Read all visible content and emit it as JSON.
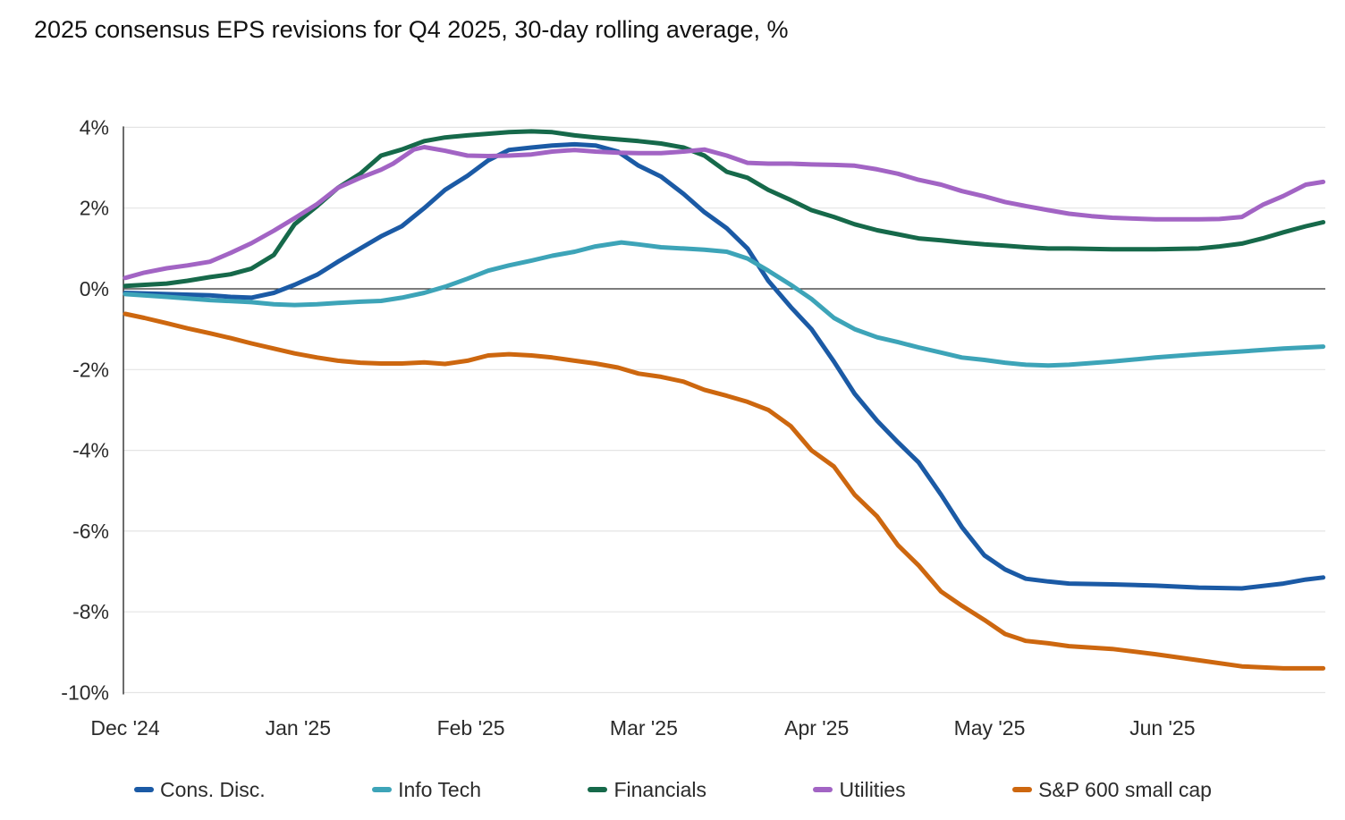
{
  "chart_data": {
    "type": "line",
    "title": "2025 consensus EPS revisions for Q4 2025, 30-day rolling average, %",
    "x_axis": {
      "unit": "months_since_dec_2024",
      "tick_values": [
        0,
        1,
        2,
        3,
        4,
        5,
        6
      ],
      "tick_labels": [
        "Dec '24",
        "Jan '25",
        "Feb '25",
        "Mar '25",
        "Apr '25",
        "May '25",
        "Jun '25"
      ],
      "range": [
        -0.01,
        6.95
      ]
    },
    "y_axis": {
      "tick_values": [
        4,
        2,
        0,
        -2,
        -4,
        -6,
        -8,
        -10
      ],
      "tick_labels": [
        "4%",
        "2%",
        "0%",
        "-2%",
        "-4%",
        "-6%",
        "-8%",
        "-10%"
      ],
      "range": [
        -10,
        4
      ],
      "grid": true
    },
    "style": {
      "grid_color": "#e4e4e4",
      "zero_line_color": "#2e2e2e",
      "axis_line_color": "#3c3c3c",
      "text_color": "#2b2b2b",
      "line_width": 5
    },
    "legend_position": "bottom",
    "series": [
      {
        "name": "Cons. Disc.",
        "color": "#1b5aa5",
        "x": [
          0,
          0.24,
          0.49,
          0.61,
          0.73,
          0.86,
          0.92,
          0.98,
          1.11,
          1.23,
          1.36,
          1.48,
          1.6,
          1.73,
          1.85,
          1.98,
          2.1,
          2.22,
          2.35,
          2.47,
          2.6,
          2.72,
          2.85,
          2.97,
          3.1,
          3.23,
          3.35,
          3.48,
          3.6,
          3.72,
          3.85,
          3.97,
          4.1,
          4.22,
          4.35,
          4.47,
          4.59,
          4.72,
          4.84,
          4.97,
          5.09,
          5.21,
          5.34,
          5.46,
          5.71,
          5.96,
          6.21,
          6.46,
          6.7,
          6.83,
          6.93
        ],
        "v": [
          -0.1,
          -0.13,
          -0.16,
          -0.2,
          -0.22,
          -0.1,
          0.0,
          0.1,
          0.35,
          0.67,
          1.0,
          1.3,
          1.55,
          2.0,
          2.45,
          2.8,
          3.18,
          3.44,
          3.5,
          3.55,
          3.58,
          3.55,
          3.4,
          3.05,
          2.78,
          2.35,
          1.9,
          1.5,
          1.0,
          0.2,
          -0.45,
          -1.0,
          -1.8,
          -2.6,
          -3.27,
          -3.8,
          -4.3,
          -5.1,
          -5.9,
          -6.6,
          -6.95,
          -7.18,
          -7.25,
          -7.3,
          -7.32,
          -7.35,
          -7.4,
          -7.42,
          -7.3,
          -7.2,
          -7.15
        ]
      },
      {
        "name": "Info Tech",
        "color": "#3da4b8",
        "x": [
          0,
          0.24,
          0.49,
          0.73,
          0.86,
          0.98,
          1.11,
          1.23,
          1.36,
          1.48,
          1.6,
          1.73,
          1.85,
          1.98,
          2.1,
          2.22,
          2.35,
          2.47,
          2.6,
          2.72,
          2.87,
          2.97,
          3.1,
          3.23,
          3.35,
          3.48,
          3.6,
          3.72,
          3.85,
          3.97,
          4.1,
          4.22,
          4.35,
          4.47,
          4.59,
          4.72,
          4.84,
          4.97,
          5.09,
          5.21,
          5.34,
          5.46,
          5.71,
          5.96,
          6.21,
          6.46,
          6.7,
          6.93
        ],
        "v": [
          -0.13,
          -0.2,
          -0.28,
          -0.33,
          -0.38,
          -0.4,
          -0.38,
          -0.35,
          -0.32,
          -0.3,
          -0.22,
          -0.1,
          0.05,
          0.25,
          0.45,
          0.58,
          0.7,
          0.82,
          0.92,
          1.05,
          1.15,
          1.1,
          1.03,
          1.0,
          0.97,
          0.92,
          0.75,
          0.45,
          0.1,
          -0.25,
          -0.72,
          -1.0,
          -1.2,
          -1.32,
          -1.45,
          -1.58,
          -1.7,
          -1.76,
          -1.83,
          -1.88,
          -1.9,
          -1.88,
          -1.8,
          -1.7,
          -1.62,
          -1.55,
          -1.48,
          -1.43
        ]
      },
      {
        "name": "Financials",
        "color": "#16694a",
        "x": [
          0,
          0.24,
          0.36,
          0.49,
          0.61,
          0.73,
          0.86,
          0.98,
          1.11,
          1.23,
          1.36,
          1.48,
          1.6,
          1.73,
          1.85,
          1.98,
          2.22,
          2.35,
          2.47,
          2.6,
          2.72,
          2.85,
          2.97,
          3.1,
          3.23,
          3.35,
          3.48,
          3.6,
          3.72,
          3.85,
          3.97,
          4.1,
          4.22,
          4.35,
          4.47,
          4.59,
          4.72,
          4.84,
          4.97,
          5.09,
          5.21,
          5.34,
          5.46,
          5.71,
          5.96,
          6.21,
          6.33,
          6.46,
          6.58,
          6.7,
          6.83,
          6.93
        ],
        "v": [
          0.07,
          0.13,
          0.2,
          0.29,
          0.36,
          0.5,
          0.84,
          1.6,
          2.05,
          2.5,
          2.85,
          3.3,
          3.45,
          3.66,
          3.75,
          3.8,
          3.88,
          3.9,
          3.88,
          3.8,
          3.75,
          3.7,
          3.66,
          3.6,
          3.5,
          3.3,
          2.9,
          2.75,
          2.45,
          2.2,
          1.95,
          1.78,
          1.6,
          1.45,
          1.35,
          1.25,
          1.2,
          1.15,
          1.1,
          1.07,
          1.03,
          1.0,
          1.0,
          0.98,
          0.98,
          1.0,
          1.05,
          1.12,
          1.25,
          1.4,
          1.55,
          1.65
        ]
      },
      {
        "name": "Utilities",
        "color": "#a264c4",
        "x": [
          0,
          0.11,
          0.24,
          0.36,
          0.49,
          0.61,
          0.73,
          0.86,
          0.98,
          1.11,
          1.23,
          1.36,
          1.48,
          1.55,
          1.67,
          1.73,
          1.85,
          1.98,
          2.1,
          2.22,
          2.35,
          2.47,
          2.6,
          2.72,
          2.85,
          2.97,
          3.1,
          3.23,
          3.35,
          3.48,
          3.6,
          3.72,
          3.85,
          3.97,
          4.1,
          4.22,
          4.35,
          4.47,
          4.59,
          4.72,
          4.84,
          4.97,
          5.09,
          5.21,
          5.34,
          5.46,
          5.59,
          5.71,
          5.83,
          5.96,
          6.08,
          6.21,
          6.33,
          6.46,
          6.58,
          6.7,
          6.83,
          6.93
        ],
        "v": [
          0.27,
          0.4,
          0.51,
          0.58,
          0.67,
          0.89,
          1.13,
          1.44,
          1.75,
          2.1,
          2.5,
          2.75,
          2.95,
          3.1,
          3.45,
          3.51,
          3.42,
          3.3,
          3.29,
          3.3,
          3.33,
          3.4,
          3.44,
          3.4,
          3.37,
          3.36,
          3.36,
          3.4,
          3.45,
          3.3,
          3.12,
          3.1,
          3.1,
          3.08,
          3.07,
          3.05,
          2.96,
          2.85,
          2.7,
          2.58,
          2.42,
          2.29,
          2.15,
          2.05,
          1.95,
          1.86,
          1.8,
          1.76,
          1.74,
          1.72,
          1.72,
          1.72,
          1.73,
          1.78,
          2.08,
          2.3,
          2.58,
          2.65
        ]
      },
      {
        "name": "S&P 600 small cap",
        "color": "#cd670f",
        "x": [
          0,
          0.11,
          0.24,
          0.36,
          0.49,
          0.61,
          0.73,
          0.86,
          0.98,
          1.11,
          1.23,
          1.36,
          1.48,
          1.6,
          1.73,
          1.85,
          1.98,
          2.1,
          2.22,
          2.35,
          2.47,
          2.6,
          2.72,
          2.85,
          2.97,
          3.1,
          3.23,
          3.35,
          3.48,
          3.6,
          3.72,
          3.85,
          3.97,
          4.1,
          4.22,
          4.35,
          4.47,
          4.59,
          4.72,
          4.84,
          4.97,
          5.09,
          5.21,
          5.34,
          5.46,
          5.71,
          5.96,
          6.21,
          6.46,
          6.7,
          6.93
        ],
        "v": [
          -0.62,
          -0.72,
          -0.85,
          -0.98,
          -1.1,
          -1.22,
          -1.35,
          -1.48,
          -1.6,
          -1.7,
          -1.78,
          -1.83,
          -1.85,
          -1.85,
          -1.82,
          -1.86,
          -1.78,
          -1.65,
          -1.62,
          -1.65,
          -1.7,
          -1.78,
          -1.85,
          -1.95,
          -2.1,
          -2.18,
          -2.3,
          -2.5,
          -2.65,
          -2.8,
          -3.0,
          -3.4,
          -4.0,
          -4.4,
          -5.1,
          -5.64,
          -6.35,
          -6.85,
          -7.5,
          -7.85,
          -8.2,
          -8.55,
          -8.72,
          -8.78,
          -8.85,
          -8.92,
          -9.05,
          -9.2,
          -9.35,
          -9.4,
          -9.4
        ]
      }
    ]
  }
}
